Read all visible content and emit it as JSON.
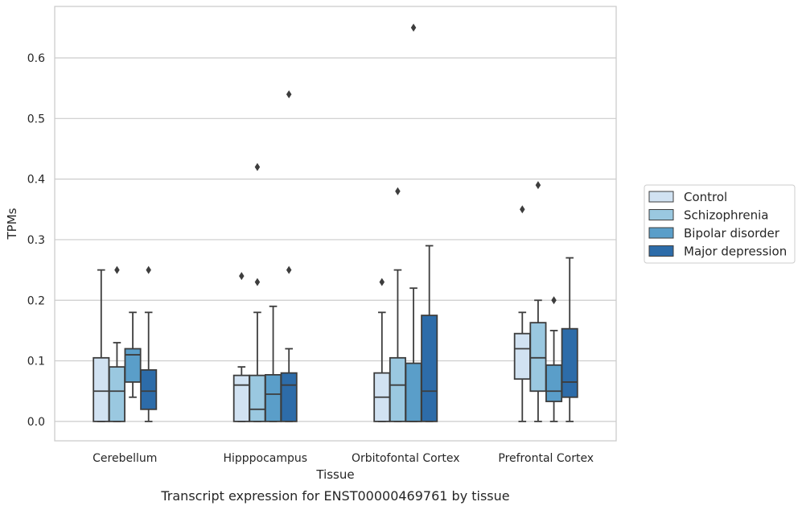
{
  "chart_data": {
    "type": "box",
    "caption": "Transcript expression for ENST00000469761 by tissue",
    "xlabel": "Tissue",
    "ylabel": "TPMs",
    "ylim": [
      -0.032,
      0.685
    ],
    "yticks": [
      0.0,
      0.1,
      0.2,
      0.3,
      0.4,
      0.5,
      0.6
    ],
    "ytick_labels": [
      "0.0",
      "0.1",
      "0.2",
      "0.3",
      "0.4",
      "0.5",
      "0.6"
    ],
    "grid": true,
    "legend_position": "right",
    "categories": [
      "Cerebellum",
      "Hipppocampus",
      "Orbitofontal Cortex",
      "Prefrontal Cortex"
    ],
    "series": [
      {
        "name": "Control",
        "color": "#d1e2f2",
        "boxes": [
          {
            "whislo": 0.0,
            "q1": 0.0,
            "med": 0.05,
            "q3": 0.105,
            "whishi": 0.25,
            "fliers": []
          },
          {
            "whislo": 0.0,
            "q1": 0.0,
            "med": 0.06,
            "q3": 0.076,
            "whishi": 0.09,
            "fliers": [
              0.24
            ]
          },
          {
            "whislo": 0.0,
            "q1": 0.0,
            "med": 0.04,
            "q3": 0.08,
            "whishi": 0.18,
            "fliers": [
              0.23
            ]
          },
          {
            "whislo": 0.0,
            "q1": 0.07,
            "med": 0.12,
            "q3": 0.145,
            "whishi": 0.18,
            "fliers": [
              0.35
            ]
          }
        ]
      },
      {
        "name": "Schizophrenia",
        "color": "#9ac8e0",
        "boxes": [
          {
            "whislo": 0.0,
            "q1": 0.0,
            "med": 0.05,
            "q3": 0.09,
            "whishi": 0.13,
            "fliers": [
              0.25
            ]
          },
          {
            "whislo": 0.0,
            "q1": 0.0,
            "med": 0.02,
            "q3": 0.076,
            "whishi": 0.18,
            "fliers": [
              0.42,
              0.23
            ]
          },
          {
            "whislo": 0.0,
            "q1": 0.0,
            "med": 0.06,
            "q3": 0.105,
            "whishi": 0.25,
            "fliers": [
              0.38
            ]
          },
          {
            "whislo": 0.0,
            "q1": 0.05,
            "med": 0.105,
            "q3": 0.163,
            "whishi": 0.2,
            "fliers": [
              0.39
            ]
          }
        ]
      },
      {
        "name": "Bipolar disorder",
        "color": "#5a9ec9",
        "boxes": [
          {
            "whislo": 0.04,
            "q1": 0.065,
            "med": 0.11,
            "q3": 0.12,
            "whishi": 0.18,
            "fliers": []
          },
          {
            "whislo": 0.0,
            "q1": 0.0,
            "med": 0.045,
            "q3": 0.077,
            "whishi": 0.19,
            "fliers": []
          },
          {
            "whislo": 0.0,
            "q1": 0.0,
            "med": 0.0,
            "q3": 0.096,
            "whishi": 0.22,
            "fliers": [
              0.65
            ]
          },
          {
            "whislo": 0.0,
            "q1": 0.033,
            "med": 0.05,
            "q3": 0.093,
            "whishi": 0.15,
            "fliers": [
              0.2
            ]
          }
        ]
      },
      {
        "name": "Major depression",
        "color": "#2d6ca9",
        "boxes": [
          {
            "whislo": 0.0,
            "q1": 0.02,
            "med": 0.05,
            "q3": 0.085,
            "whishi": 0.18,
            "fliers": [
              0.25
            ]
          },
          {
            "whislo": 0.0,
            "q1": 0.0,
            "med": 0.06,
            "q3": 0.08,
            "whishi": 0.12,
            "fliers": [
              0.54,
              0.25
            ]
          },
          {
            "whislo": 0.0,
            "q1": 0.0,
            "med": 0.05,
            "q3": 0.175,
            "whishi": 0.29,
            "fliers": []
          },
          {
            "whislo": 0.0,
            "q1": 0.04,
            "med": 0.065,
            "q3": 0.153,
            "whishi": 0.27,
            "fliers": []
          }
        ]
      }
    ]
  },
  "colors": {
    "grid": "#cccccc",
    "frame": "#cccccc",
    "box_edge": "#3d3d3d",
    "background": "#ffffff"
  }
}
